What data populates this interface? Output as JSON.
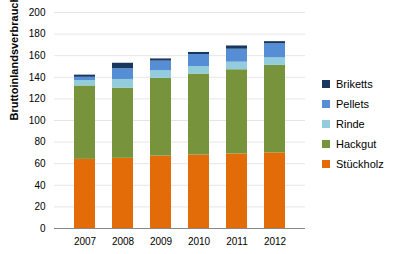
{
  "chart_data": {
    "type": "bar",
    "stacked": true,
    "y_label": "Bruttoinlandsverbrauch in PJ",
    "categories": [
      "2007",
      "2008",
      "2009",
      "2010",
      "2011",
      "2012"
    ],
    "series": [
      {
        "name": "Stückholz",
        "color": "#e36c09",
        "values": [
          64,
          65,
          67,
          68,
          69,
          70
        ]
      },
      {
        "name": "Hackgut",
        "color": "#77933c",
        "values": [
          68,
          65,
          72,
          75,
          78,
          81
        ]
      },
      {
        "name": "Rinde",
        "color": "#93cddd",
        "values": [
          5,
          8,
          7,
          7,
          7,
          7
        ]
      },
      {
        "name": "Pellets",
        "color": "#558ed5",
        "values": [
          3,
          10,
          9,
          11,
          12,
          13
        ]
      },
      {
        "name": "Briketts",
        "color": "#17375e",
        "values": [
          2,
          5,
          2,
          2,
          3,
          2
        ]
      }
    ],
    "ylim": [
      0,
      200
    ],
    "yticks": [
      0,
      20,
      40,
      60,
      80,
      100,
      120,
      140,
      160,
      180,
      200
    ],
    "grid": true,
    "legend": "right"
  }
}
